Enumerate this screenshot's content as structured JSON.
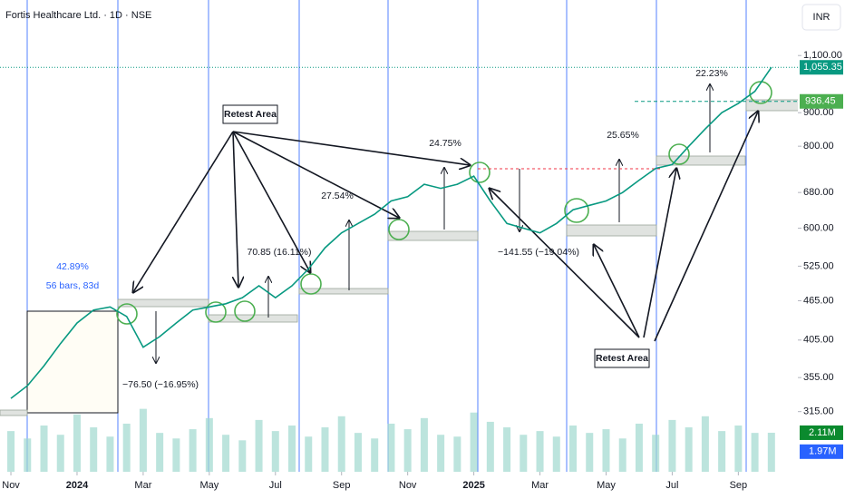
{
  "chart_data": {
    "type": "line",
    "title": "Fortis Healthcare Ltd. · 1D · NSE",
    "currency": "INR",
    "log_scale": true,
    "x": [
      0,
      0.5,
      1,
      1.5,
      2,
      2.5,
      3,
      3.5,
      4,
      4.5,
      5,
      5.5,
      6,
      6.5,
      7,
      7.5,
      8,
      8.5,
      9,
      9.5,
      10,
      10.5,
      11,
      11.5,
      12,
      12.5,
      13,
      13.5,
      14,
      14.5,
      15,
      15.5,
      16,
      16.5,
      17,
      17.5,
      18,
      18.5,
      19,
      19.5,
      20,
      20.5,
      21,
      21.5,
      22,
      22.5,
      23
    ],
    "xlim": [
      -0.33,
      23.8
    ],
    "xticks": [
      {
        "value": 0,
        "label": "Nov"
      },
      {
        "value": 2,
        "label": "2024"
      },
      {
        "value": 4,
        "label": "Mar"
      },
      {
        "value": 6,
        "label": "May"
      },
      {
        "value": 8,
        "label": "Jul"
      },
      {
        "value": 10,
        "label": "Sep"
      },
      {
        "value": 12,
        "label": "Nov"
      },
      {
        "value": 14,
        "label": "2025"
      },
      {
        "value": 16,
        "label": "Mar"
      },
      {
        "value": 18,
        "label": "May"
      },
      {
        "value": 20,
        "label": "Jul"
      },
      {
        "value": 22,
        "label": "Sep"
      }
    ],
    "ylim": [
      255,
      1295
    ],
    "yticks": [
      {
        "value": 315,
        "label": "315.00"
      },
      {
        "value": 355,
        "label": "355.00"
      },
      {
        "value": 405,
        "label": "405.00"
      },
      {
        "value": 465,
        "label": "465.00"
      },
      {
        "value": 525,
        "label": "525.00"
      },
      {
        "value": 600,
        "label": "600.00"
      },
      {
        "value": 680,
        "label": "680.00"
      },
      {
        "value": 800,
        "label": "800.00"
      },
      {
        "value": 900,
        "label": "900.00"
      },
      {
        "value": 1100,
        "label": "1,100.00"
      }
    ],
    "y2lim": [
      0,
      25
    ],
    "series": [
      {
        "name": "Price",
        "color": "#089981",
        "values": [
          330,
          345,
          370,
          400,
          430,
          450,
          455,
          440,
          395,
          410,
          430,
          450,
          455,
          460,
          470,
          490,
          470,
          490,
          520,
          560,
          590,
          610,
          630,
          660,
          670,
          700,
          690,
          700,
          720,
          660,
          610,
          600,
          590,
          610,
          640,
          650,
          660,
          680,
          710,
          740,
          750,
          800,
          850,
          900,
          930,
          970,
          1055
        ]
      },
      {
        "name": "Volume",
        "axis": "y2",
        "color": "#9fd9cf",
        "values": [
          2.2,
          1.8,
          2.5,
          2.0,
          3.1,
          2.4,
          1.9,
          2.6,
          3.4,
          2.1,
          1.8,
          2.3,
          2.9,
          2.0,
          1.7,
          2.8,
          2.2,
          2.5,
          1.9,
          2.4,
          3.0,
          2.1,
          1.8,
          2.6,
          2.3,
          2.9,
          2.0,
          1.9,
          3.2,
          2.7,
          2.4,
          2.0,
          2.2,
          1.9,
          2.5,
          2.1,
          2.3,
          1.8,
          2.6,
          2.0,
          2.8,
          2.4,
          3.0,
          2.2,
          2.5,
          2.1,
          2.11
        ]
      }
    ],
    "last_price": {
      "value": 1055.35,
      "label": "1,055.35"
    },
    "level": {
      "value": 936.45,
      "label": "936.45"
    },
    "volume_labels": [
      {
        "value": 2.11,
        "label": "2.11M"
      },
      {
        "value": 1.97,
        "label": "1.97M"
      }
    ],
    "annotations": [
      "Retest Area",
      "Retest Area",
      "42.89%",
      "56 bars, 83d",
      "−76.50 (−16.95%)",
      "70.85 (16.11%)",
      "27.54%",
      "24.75%",
      "−141.55 (−19.04%)",
      "25.65%",
      "22.23%"
    ]
  }
}
